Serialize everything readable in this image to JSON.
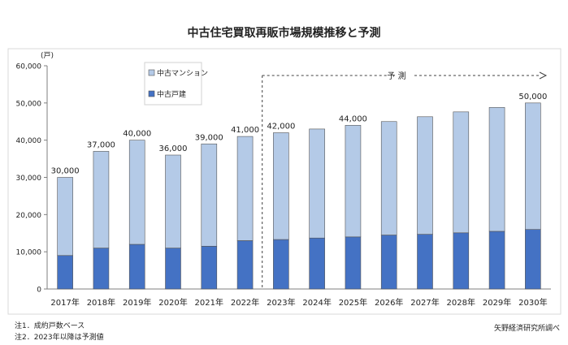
{
  "chart_data": {
    "type": "bar",
    "stacked": true,
    "title": "中古住宅買取再販市場規模推移と予測",
    "ylabel": "(戸)",
    "xlabel": "",
    "ylim": [
      0,
      60000
    ],
    "yticks": [
      "0",
      "10,000",
      "20,000",
      "30,000",
      "40,000",
      "50,000",
      "60,000"
    ],
    "grid": false,
    "legend_position": "top-left",
    "categories": [
      "2017年",
      "2018年",
      "2019年",
      "2020年",
      "2021年",
      "2022年",
      "2023年",
      "2024年",
      "2025年",
      "2026年",
      "2027年",
      "2028年",
      "2029年",
      "2030年"
    ],
    "series": [
      {
        "name": "中古戸建",
        "color": "#4472c4",
        "values": [
          9000,
          11000,
          12000,
          11000,
          11500,
          13000,
          13300,
          13700,
          14000,
          14500,
          14700,
          15100,
          15500,
          16000
        ]
      },
      {
        "name": "中古マンション",
        "color": "#b4cae7",
        "values": [
          21000,
          26000,
          28000,
          25000,
          27500,
          28000,
          28700,
          29300,
          30000,
          30500,
          31600,
          32500,
          33300,
          34000
        ]
      }
    ],
    "totals": [
      30000,
      37000,
      40000,
      36000,
      39000,
      41000,
      42000,
      43000,
      44000,
      45000,
      46300,
      47600,
      48800,
      50000
    ],
    "data_labels": [
      "30,000",
      "37,000",
      "40,000",
      "36,000",
      "39,000",
      "41,000",
      "42,000",
      "",
      "44,000",
      "",
      "",
      "",
      "",
      "50,000"
    ],
    "forecast": {
      "label": "予 測",
      "start_category": "2023年"
    }
  },
  "notes": [
    "注1．成約戸数ベース",
    "注2．2023年以降は予測値"
  ],
  "source": "矢野経済研究所調べ"
}
